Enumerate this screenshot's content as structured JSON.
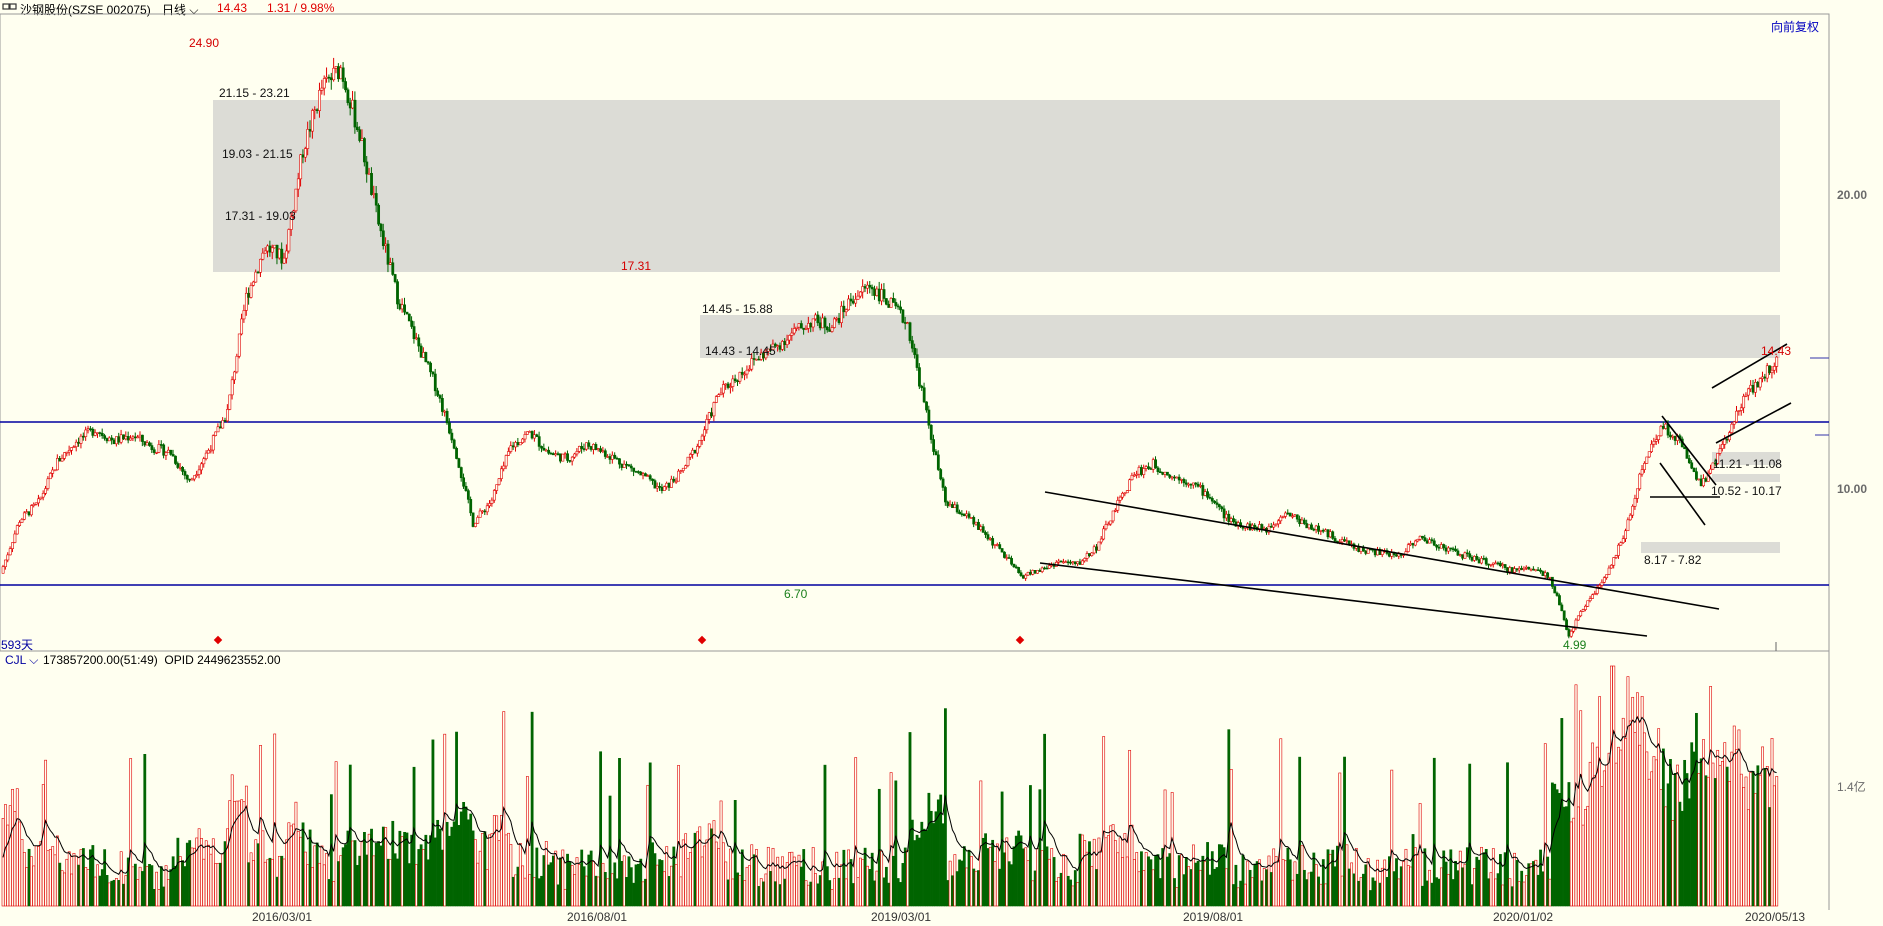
{
  "header": {
    "title": "沙钢股份(SZSE 002075)",
    "period": "日线",
    "last_price": "14.43",
    "change": "1.31 / 9.98%"
  },
  "adjust_button": "向前复权",
  "days_label": "593天",
  "volume_panel": {
    "indicator": "CJL",
    "values": "173857200.00(51:49)  OPID 2449623552.00",
    "y_tick": "1.4亿"
  },
  "colors": {
    "background": "#fffff0",
    "up": "#e00000",
    "down": "#006400",
    "hline": "#0000a0",
    "zone": "#dcdcd6"
  },
  "chart_data": {
    "type": "candlestick",
    "title": "",
    "y_ticks": [
      "20.00",
      "10.00"
    ],
    "x_ticks": [
      "2016/03/01",
      "2016/08/01",
      "2019/03/01",
      "2019/08/01",
      "2020/01/02",
      "2020/05/13"
    ],
    "extreme_labels": [
      {
        "text": "24.90",
        "kind": "high"
      },
      {
        "text": "17.31",
        "kind": "high"
      },
      {
        "text": "14.43",
        "kind": "high"
      },
      {
        "text": "6.70",
        "kind": "low"
      },
      {
        "text": "4.99",
        "kind": "low"
      }
    ],
    "zones": [
      "21.15 - 23.21",
      "19.03 - 21.15",
      "17.31 - 19.03",
      "14.45 - 15.88",
      "14.43 - 14.45",
      "11.21 - 11.08",
      "10.52 - 10.17",
      "8.17 - 7.82"
    ],
    "close": [
      7.1,
      8.9,
      9.5,
      10.9,
      11.6,
      12.0,
      11.6,
      11.8,
      11.4,
      11.2,
      10.2,
      11.3,
      12.6,
      16.5,
      18.2,
      17.8,
      21.5,
      23.6,
      24.3,
      22.0,
      19.0,
      16.5,
      15.0,
      13.5,
      11.5,
      8.8,
      9.6,
      11.4,
      11.9,
      11.2,
      11.0,
      11.5,
      11.2,
      10.8,
      10.4,
      9.9,
      10.5,
      11.6,
      13.2,
      13.8,
      14.4,
      14.8,
      15.3,
      15.7,
      15.5,
      16.4,
      16.9,
      16.3,
      15.6,
      12.5,
      9.5,
      9.1,
      8.5,
      7.8,
      7.0,
      7.2,
      7.5,
      7.4,
      8.0,
      9.3,
      10.5,
      10.8,
      10.4,
      10.2,
      9.7,
      8.9,
      8.7,
      8.6,
      9.2,
      8.8,
      8.5,
      8.2,
      7.9,
      7.8,
      7.7,
      8.3,
      8.1,
      7.8,
      7.6,
      7.4,
      7.2,
      7.3,
      7.0,
      5.0,
      6.2,
      7.0,
      8.5,
      11.0,
      12.1,
      11.5,
      10.1,
      11.2,
      12.8,
      13.6,
      14.4
    ],
    "volume_note": "CJL volume bars with OPID moving-average line"
  }
}
